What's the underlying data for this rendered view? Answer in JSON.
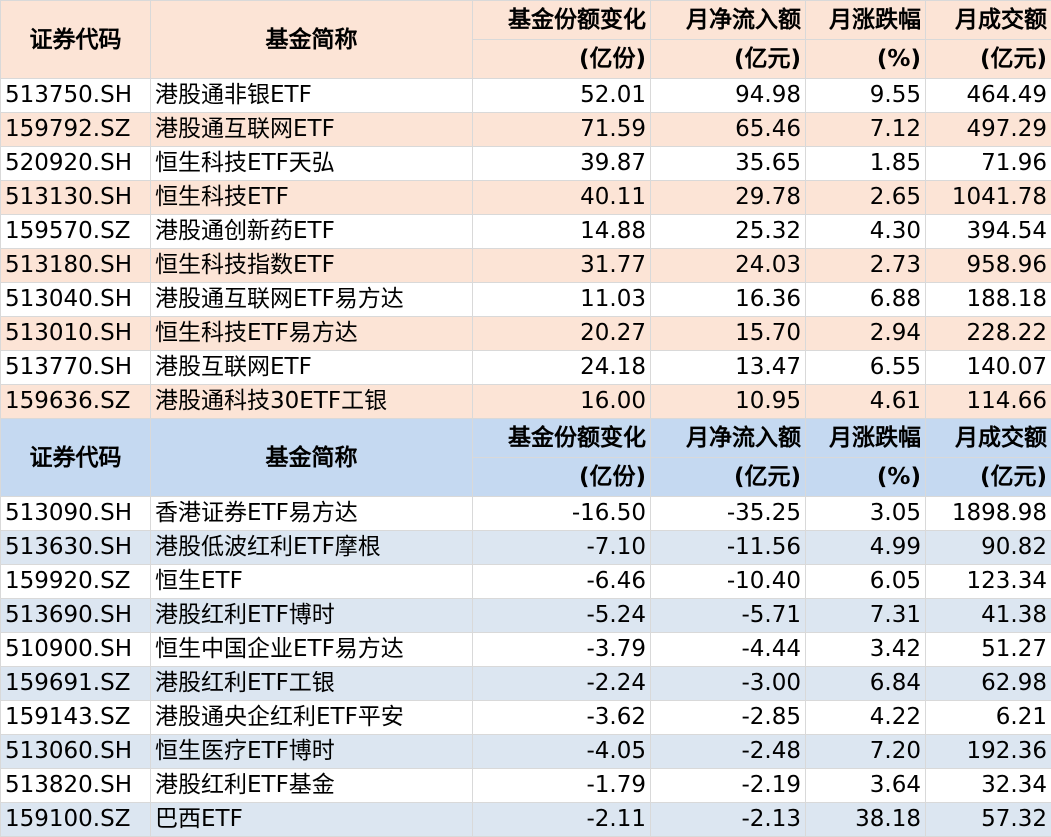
{
  "header": {
    "code": "证券代码",
    "name": "基金简称",
    "share": "基金份额变化",
    "share_unit": "(亿份)",
    "inflow": "月净流入额",
    "inflow_unit": "(亿元)",
    "change": "月涨跌幅",
    "change_unit": "(%)",
    "volume": "月成交额",
    "volume_unit": "(亿元)"
  },
  "colors": {
    "top_header": "#FCE4D6",
    "top_alt_row": "#FCE4D6",
    "bottom_header": "#C5D9F1",
    "bottom_alt_row": "#DCE6F1"
  },
  "inflow_table": [
    [
      "513750.SH",
      "港股通非银ETF",
      "52.01",
      "94.98",
      "9.55",
      "464.49"
    ],
    [
      "159792.SZ",
      "港股通互联网ETF",
      "71.59",
      "65.46",
      "7.12",
      "497.29"
    ],
    [
      "520920.SH",
      "恒生科技ETF天弘",
      "39.87",
      "35.65",
      "1.85",
      "71.96"
    ],
    [
      "513130.SH",
      "恒生科技ETF",
      "40.11",
      "29.78",
      "2.65",
      "1041.78"
    ],
    [
      "159570.SZ",
      "港股通创新药ETF",
      "14.88",
      "25.32",
      "4.30",
      "394.54"
    ],
    [
      "513180.SH",
      "恒生科技指数ETF",
      "31.77",
      "24.03",
      "2.73",
      "958.96"
    ],
    [
      "513040.SH",
      "港股通互联网ETF易方达",
      "11.03",
      "16.36",
      "6.88",
      "188.18"
    ],
    [
      "513010.SH",
      "恒生科技ETF易方达",
      "20.27",
      "15.70",
      "2.94",
      "228.22"
    ],
    [
      "513770.SH",
      "港股互联网ETF",
      "24.18",
      "13.47",
      "6.55",
      "140.07"
    ],
    [
      "159636.SZ",
      "港股通科技30ETF工银",
      "16.00",
      "10.95",
      "4.61",
      "114.66"
    ]
  ],
  "outflow_table": [
    [
      "513090.SH",
      "香港证券ETF易方达",
      "-16.50",
      "-35.25",
      "3.05",
      "1898.98"
    ],
    [
      "513630.SH",
      "港股低波红利ETF摩根",
      "-7.10",
      "-11.56",
      "4.99",
      "90.82"
    ],
    [
      "159920.SZ",
      "恒生ETF",
      "-6.46",
      "-10.40",
      "6.05",
      "123.34"
    ],
    [
      "513690.SH",
      "港股红利ETF博时",
      "-5.24",
      "-5.71",
      "7.31",
      "41.38"
    ],
    [
      "510900.SH",
      "恒生中国企业ETF易方达",
      "-3.79",
      "-4.44",
      "3.42",
      "51.27"
    ],
    [
      "159691.SZ",
      "港股红利ETF工银",
      "-2.24",
      "-3.00",
      "6.84",
      "62.98"
    ],
    [
      "159143.SZ",
      "港股通央企红利ETF平安",
      "-3.62",
      "-2.85",
      "4.22",
      "6.21"
    ],
    [
      "513060.SH",
      "恒生医疗ETF博时",
      "-4.05",
      "-2.48",
      "7.20",
      "192.36"
    ],
    [
      "513820.SH",
      "港股红利ETF基金",
      "-1.79",
      "-2.19",
      "3.64",
      "32.34"
    ],
    [
      "159100.SZ",
      "巴西ETF",
      "-2.11",
      "-2.13",
      "38.18",
      "57.32"
    ]
  ]
}
